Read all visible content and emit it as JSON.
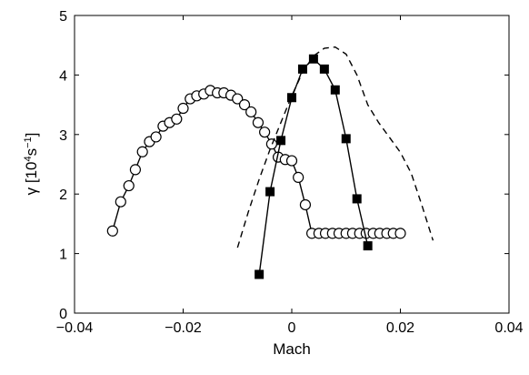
{
  "chart_data": {
    "type": "line",
    "title": "",
    "xlabel": "Mach",
    "ylabel": {
      "symbol": "γ",
      "open_bracket": " [10",
      "exp1": "4",
      "unit": "s",
      "exp2": "−1",
      "close_bracket": "]"
    },
    "xlim": [
      -0.04,
      0.04
    ],
    "ylim": [
      0,
      5
    ],
    "grid": false,
    "legend": "none",
    "x_ticks": [
      -0.04,
      -0.02,
      0,
      0.02,
      0.04
    ],
    "x_tick_labels": [
      "−0.04",
      "−0.02",
      "0",
      "0.02",
      "0.04"
    ],
    "y_ticks": [
      0,
      1,
      2,
      3,
      4,
      5
    ],
    "y_tick_labels": [
      "0",
      "1",
      "2",
      "3",
      "4",
      "5"
    ],
    "series": [
      {
        "style": "circles",
        "color": "#000000",
        "x": [
          -0.033,
          -0.0315,
          -0.03,
          -0.0288,
          -0.0275,
          -0.0262,
          -0.025,
          -0.0237,
          -0.0225,
          -0.0212,
          -0.02,
          -0.0187,
          -0.0175,
          -0.0162,
          -0.015,
          -0.0137,
          -0.0125,
          -0.0112,
          -0.01,
          -0.0087,
          -0.0075,
          -0.0062,
          -0.005,
          -0.0037,
          -0.0025,
          -0.0012,
          0,
          0.0012,
          0.0025,
          0.0037,
          0.005,
          0.0062,
          0.0075,
          0.0087,
          0.01,
          0.0112,
          0.0125,
          0.0137,
          0.015,
          0.0162,
          0.0175,
          0.0187,
          0.02
        ],
        "y": [
          1.38,
          1.87,
          2.14,
          2.41,
          2.71,
          2.88,
          2.96,
          3.14,
          3.2,
          3.26,
          3.44,
          3.6,
          3.65,
          3.68,
          3.74,
          3.7,
          3.7,
          3.66,
          3.6,
          3.5,
          3.38,
          3.2,
          3.04,
          2.84,
          2.62,
          2.58,
          2.56,
          2.28,
          1.82,
          1.34,
          1.34,
          1.34,
          1.34,
          1.34,
          1.34,
          1.34,
          1.34,
          1.34,
          1.34,
          1.34,
          1.34,
          1.34,
          1.34
        ]
      },
      {
        "style": "filled-squares",
        "color": "#000000",
        "x": [
          -0.006,
          -0.004,
          -0.002,
          0,
          0.002,
          0.004,
          0.006,
          0.008,
          0.01,
          0.012,
          0.014
        ],
        "y": [
          0.65,
          2.04,
          2.9,
          3.62,
          4.1,
          4.27,
          4.1,
          3.75,
          2.93,
          1.92,
          1.13
        ]
      },
      {
        "style": "dashed",
        "color": "#000000",
        "x": [
          -0.01,
          -0.008,
          -0.006,
          -0.004,
          -0.002,
          0,
          0.002,
          0.004,
          0.006,
          0.008,
          0.01,
          0.012,
          0.014,
          0.016,
          0.018,
          0.02,
          0.022,
          0.024,
          0.026
        ],
        "y": [
          1.1,
          1.7,
          2.25,
          2.75,
          3.2,
          3.65,
          4.05,
          4.32,
          4.45,
          4.47,
          4.35,
          4.0,
          3.5,
          3.2,
          2.95,
          2.7,
          2.35,
          1.8,
          1.22
        ]
      }
    ]
  }
}
